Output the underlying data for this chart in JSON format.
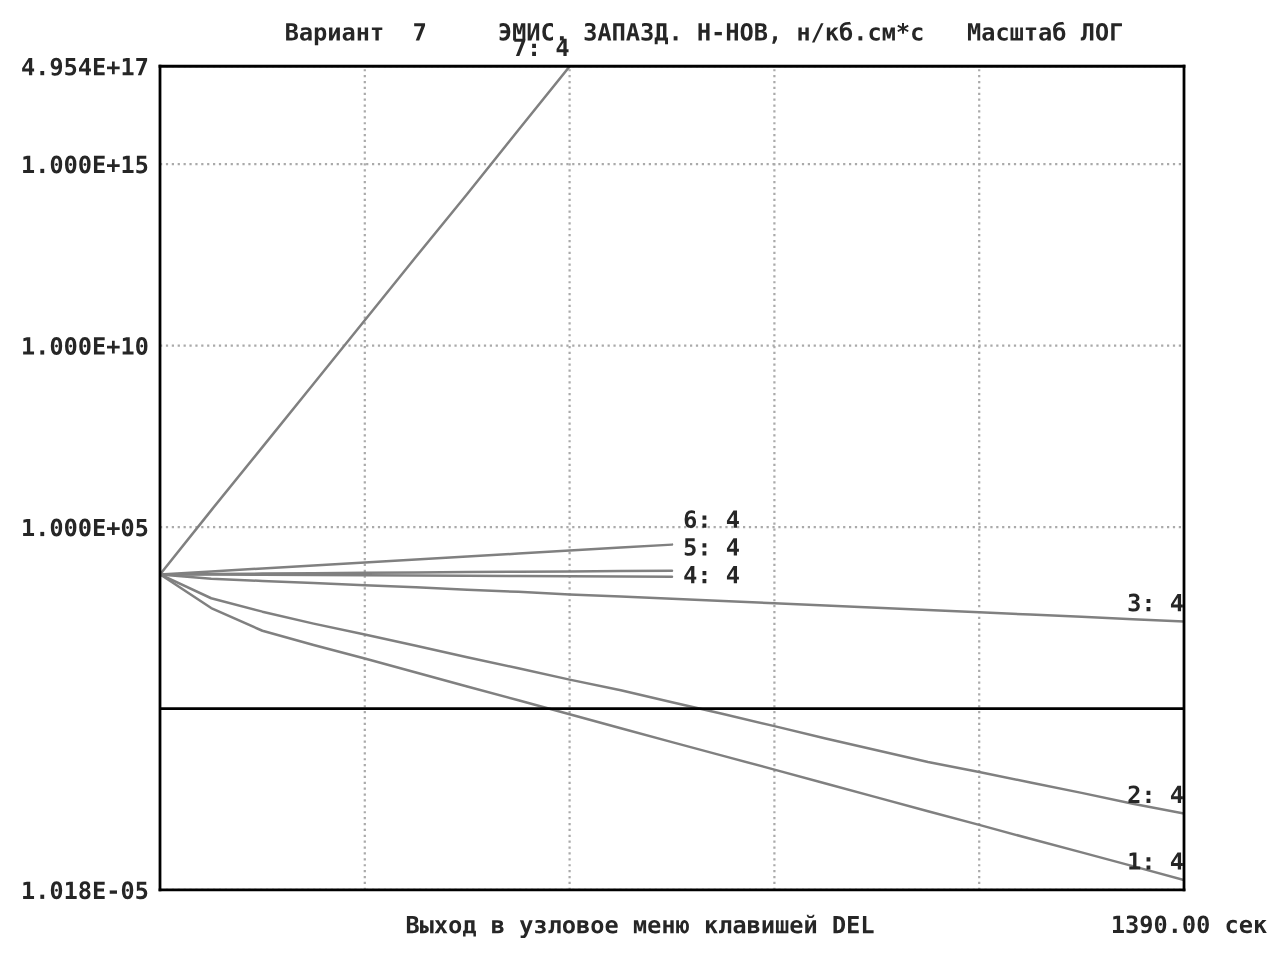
{
  "chart_data": {
    "type": "line",
    "title": "Вариант  7     ЭМИС. ЗАПАЗД. Н-НОВ, н/кб.см*с   Масштаб ЛОГ",
    "annotations": [
      "Выход в узловое меню клавишей DEL",
      "1390.00 сек"
    ],
    "log": "y",
    "grid": true,
    "legend": false,
    "marker": "none",
    "line_style": "solid",
    "categories": [
      null,
      null,
      null,
      null,
      null,
      null,
      null,
      null,
      null,
      null,
      null,
      null,
      null,
      null,
      null,
      null,
      null,
      null,
      null,
      null,
      null
    ],
    "ylim": [
      1.018e-05,
      4.954e+17
    ],
    "yticks": [
      {
        "value": 1.018e-05,
        "label": "1.018E-05"
      },
      {
        "value": 100000,
        "label": "1.000E+05"
      },
      {
        "value": 10000000000.0,
        "label": "1.000E+10"
      },
      {
        "value": 1000000000000000.0,
        "label": "1.000E+15"
      },
      {
        "value": 4.954e+17,
        "label": "4.954E+17"
      }
    ],
    "ref_lines": [
      {
        "axis": "y",
        "value": 1,
        "color": "#000000"
      }
    ],
    "series": [
      {
        "name": "1: 4",
        "color": "#808080",
        "values": [
          5000,
          590,
          140,
          57,
          24,
          9.9,
          4.1,
          1.7,
          0.7,
          0.29,
          0.12,
          0.05,
          0.021,
          0.0087,
          0.0036,
          0.0015,
          0.00063,
          0.00026,
          0.00011,
          4.6e-05,
          1.9e-05
        ]
      },
      {
        "name": "2: 4",
        "color": "#808080",
        "values": [
          5000,
          1100,
          470,
          220,
          110,
          54,
          26,
          13,
          6.3,
          3.2,
          1.5,
          0.71,
          0.33,
          0.15,
          0.072,
          0.034,
          0.018,
          0.0093,
          0.0048,
          0.0024,
          0.0013
        ]
      },
      {
        "name": "3: 4",
        "color": "#808080",
        "values": [
          5000,
          3800,
          3300,
          2900,
          2500,
          2200,
          1900,
          1650,
          1400,
          1230,
          1070,
          930,
          800,
          690,
          600,
          525,
          450,
          390,
          340,
          290,
          250
        ]
      },
      {
        "name": "4: 4",
        "color": "#808080",
        "values": [
          5000,
          4930,
          4860,
          4790,
          4720,
          4650,
          4580,
          4510,
          4440,
          4370,
          4300,
          null,
          null,
          null,
          null,
          null,
          null,
          null,
          null,
          null,
          null
        ]
      },
      {
        "name": "5: 4",
        "color": "#808080",
        "values": [
          5000,
          5130,
          5260,
          5390,
          5520,
          5650,
          5780,
          5910,
          6040,
          6170,
          6300,
          null,
          null,
          null,
          null,
          null,
          null,
          null,
          null,
          null,
          null
        ]
      },
      {
        "name": "6: 4",
        "color": "#808080",
        "values": [
          5000,
          6040,
          7300,
          8800,
          10600,
          12800,
          15500,
          18700,
          22600,
          27300,
          33000,
          null,
          null,
          null,
          null,
          null,
          null,
          null,
          null,
          null,
          null
        ]
      },
      {
        "name": "7: 4",
        "color": "#808080",
        "values": [
          5000,
          290000,
          16000000,
          890000000,
          50000000000,
          2800000000000,
          150000000000000,
          8700000000000000,
          4.9e+17,
          null,
          null,
          null,
          null,
          null,
          null,
          null,
          null,
          null,
          null,
          null,
          null
        ]
      }
    ]
  }
}
